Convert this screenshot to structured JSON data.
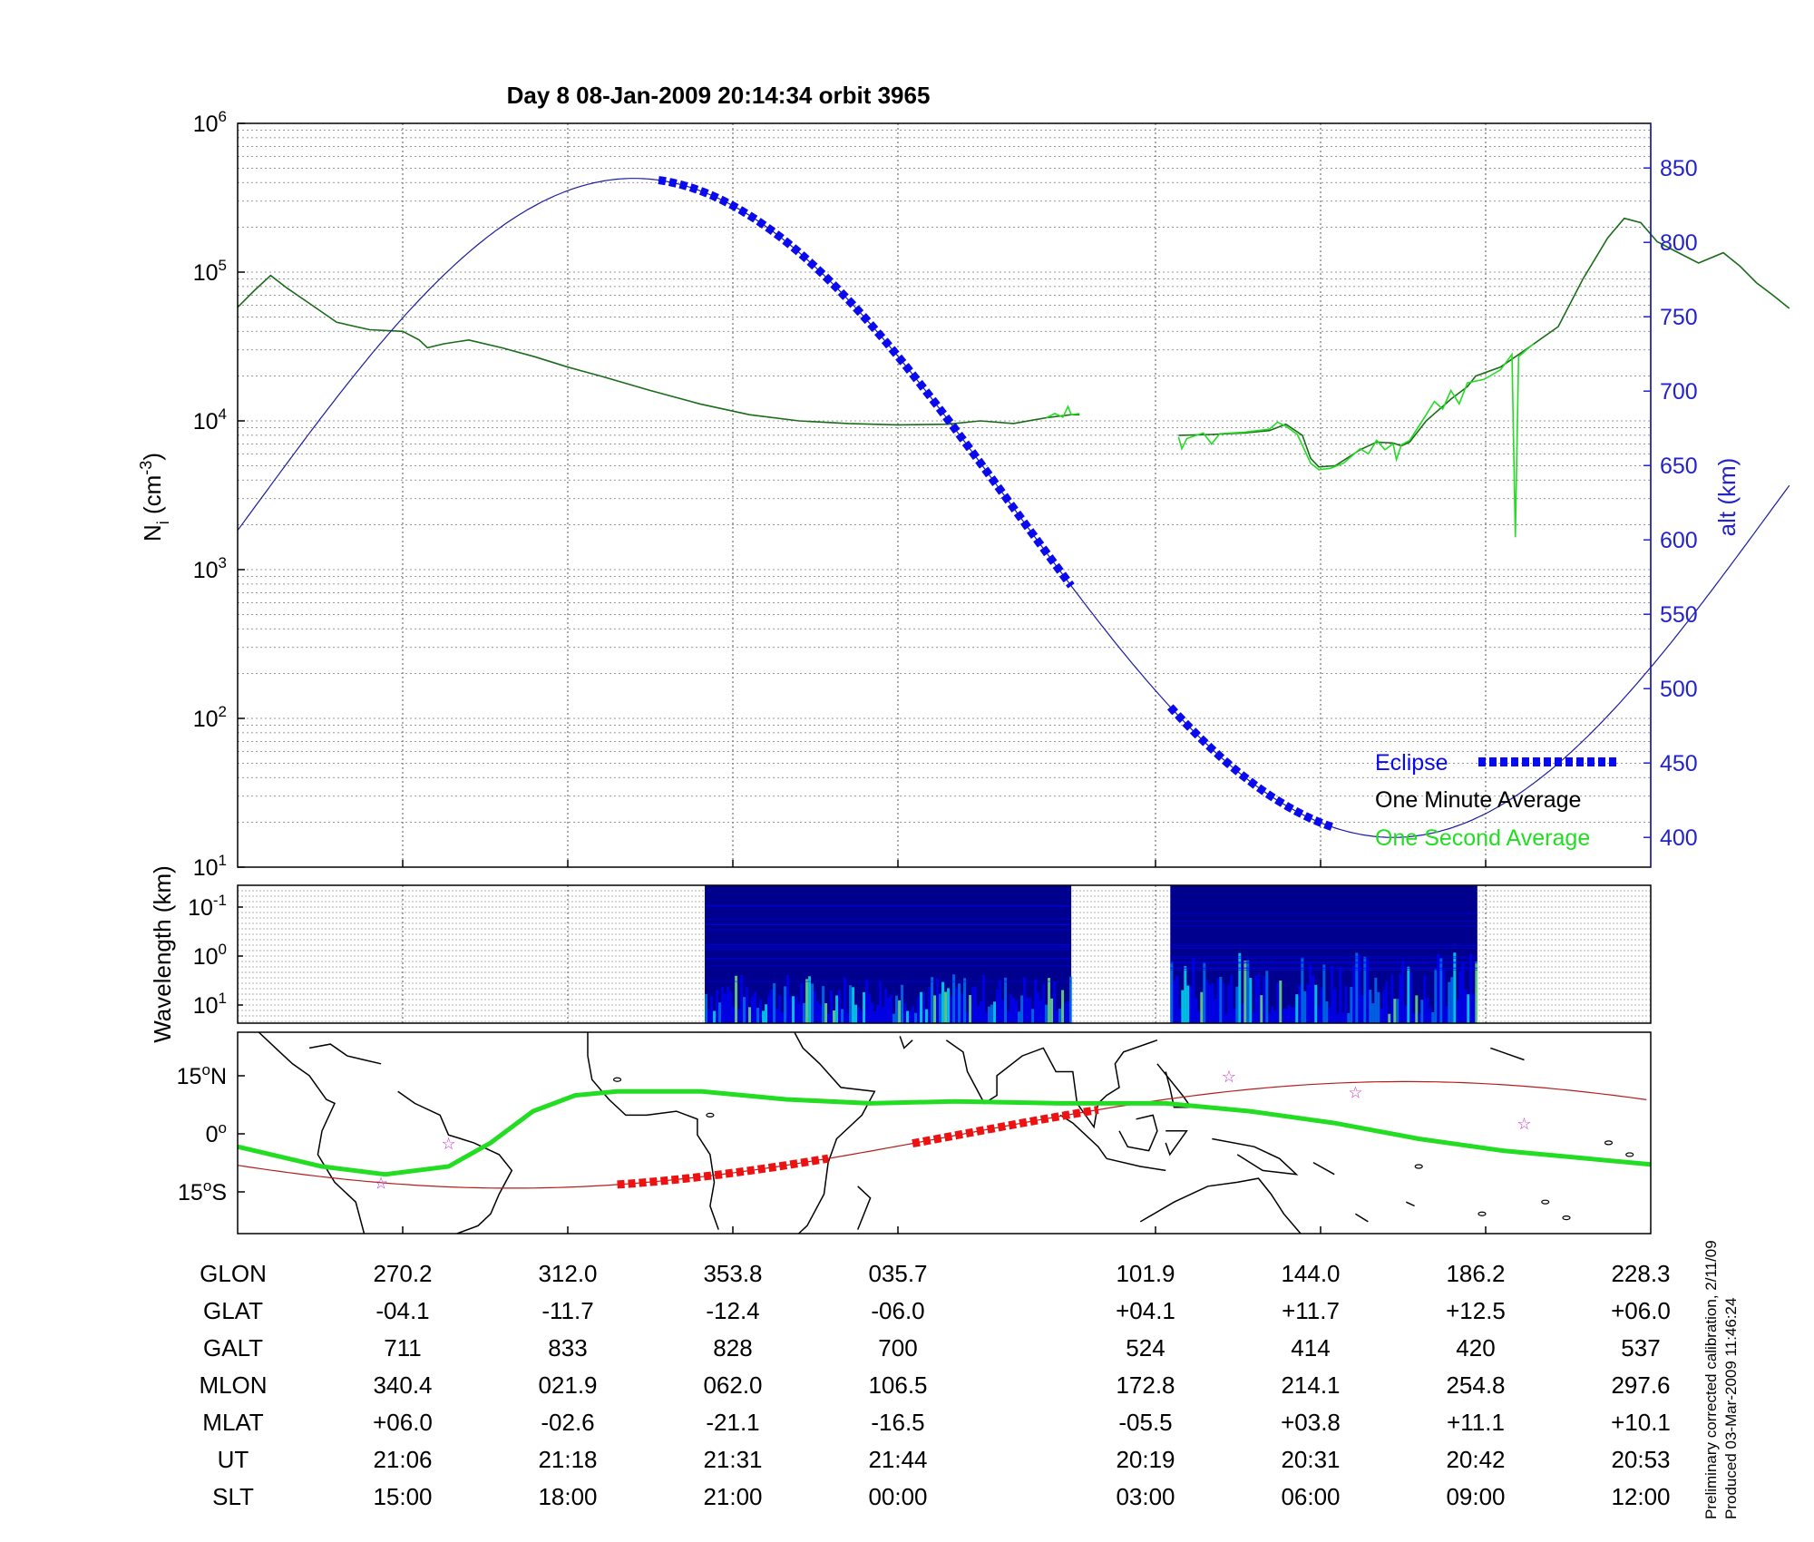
{
  "chart_data": [
    {
      "type": "line",
      "title": "Day 8  08-Jan-2009 20:14:34   orbit 3965",
      "ylabel_main": "N",
      "ylabel_sub": "i",
      "ylabel_unit_open": " (cm",
      "ylabel_unit_exp": "-3",
      "ylabel_unit_close": ")",
      "y_scale": "log",
      "ylim": [
        10,
        1000000
      ],
      "y_ticks": [
        {
          "base": "10",
          "exp": "1"
        },
        {
          "base": "10",
          "exp": "2"
        },
        {
          "base": "10",
          "exp": "3"
        },
        {
          "base": "10",
          "exp": "4"
        },
        {
          "base": "10",
          "exp": "5"
        },
        {
          "base": "10",
          "exp": "6"
        }
      ],
      "y2label": "alt (km)",
      "y2lim": [
        380,
        880
      ],
      "y2_ticks": [
        "400",
        "450",
        "500",
        "550",
        "600",
        "650",
        "700",
        "750",
        "800",
        "850"
      ],
      "x_index_range": [
        0,
        8.5
      ],
      "grid": true,
      "legend": {
        "placement": "bottom-right",
        "entries": [
          {
            "label": "Eclipse",
            "color": "#0a0aee"
          },
          {
            "label": "One Minute Average",
            "color": "#000000"
          },
          {
            "label": "One Second Average",
            "color": "#22dd22"
          }
        ]
      },
      "series": [
        {
          "name": "One Minute Average",
          "color": "#1a6b1a",
          "segments": [
            [
              [
                0,
                58000
              ],
              [
                0.1,
                75000
              ],
              [
                0.2,
                95000
              ],
              [
                0.3,
                78000
              ],
              [
                0.45,
                60000
              ],
              [
                0.6,
                46000
              ],
              [
                0.8,
                41000
              ],
              [
                1.0,
                40000
              ],
              [
                1.1,
                35000
              ],
              [
                1.15,
                31000
              ],
              [
                1.25,
                33000
              ],
              [
                1.4,
                35000
              ],
              [
                1.6,
                31000
              ],
              [
                1.8,
                27000
              ],
              [
                2.0,
                23000
              ],
              [
                2.2,
                20000
              ],
              [
                2.5,
                16000
              ],
              [
                2.8,
                13000
              ],
              [
                3.1,
                11000
              ],
              [
                3.4,
                10000
              ],
              [
                3.7,
                9600
              ],
              [
                4.0,
                9400
              ],
              [
                4.3,
                9500
              ],
              [
                4.5,
                10000
              ],
              [
                4.7,
                9600
              ],
              [
                4.9,
                10500
              ],
              [
                5.05,
                11000
              ],
              [
                5.1,
                11000
              ]
            ],
            [
              [
                5.1,
                11000
              ]
            ],
            [
              [
                5.7,
                8000
              ],
              [
                5.9,
                8100
              ],
              [
                6.1,
                8300
              ],
              [
                6.25,
                8600
              ],
              [
                6.35,
                9500
              ],
              [
                6.45,
                8000
              ],
              [
                6.5,
                5600
              ],
              [
                6.55,
                4900
              ],
              [
                6.65,
                5000
              ],
              [
                6.8,
                6400
              ],
              [
                6.9,
                7200
              ],
              [
                7.0,
                7100
              ],
              [
                7.05,
                6800
              ],
              [
                7.1,
                7200
              ],
              [
                7.2,
                10000
              ],
              [
                7.35,
                14000
              ],
              [
                7.45,
                17000
              ],
              [
                7.5,
                20000
              ],
              [
                7.65,
                23000
              ],
              [
                7.8,
                30000
              ],
              [
                8.0,
                43000
              ],
              [
                8.15,
                90000
              ],
              [
                8.3,
                170000
              ],
              [
                8.4,
                230000
              ],
              [
                8.5,
                215000
              ],
              [
                8.6,
                160000
              ],
              [
                8.7,
                140000
              ],
              [
                8.85,
                115000
              ],
              [
                9.0,
                135000
              ],
              [
                9.1,
                110000
              ],
              [
                9.2,
                85000
              ],
              [
                9.3,
                70000
              ],
              [
                9.4,
                57000
              ]
            ]
          ]
        },
        {
          "name": "One Second Average",
          "color": "#22dd22",
          "segments": [
            [
              [
                4.9,
                10500
              ],
              [
                4.95,
                11200
              ],
              [
                5.0,
                10600
              ],
              [
                5.03,
                12500
              ],
              [
                5.05,
                11000
              ],
              [
                5.1,
                11200
              ]
            ],
            [
              [
                5.7,
                7800
              ],
              [
                5.72,
                6500
              ],
              [
                5.75,
                7600
              ],
              [
                5.85,
                8300
              ],
              [
                5.9,
                7000
              ],
              [
                5.95,
                8200
              ],
              [
                6.1,
                8400
              ],
              [
                6.25,
                8800
              ],
              [
                6.3,
                9800
              ],
              [
                6.35,
                9200
              ],
              [
                6.42,
                8100
              ],
              [
                6.5,
                5200
              ],
              [
                6.55,
                4700
              ],
              [
                6.62,
                4800
              ],
              [
                6.7,
                5200
              ],
              [
                6.8,
                6500
              ],
              [
                6.85,
                6000
              ],
              [
                6.9,
                7400
              ],
              [
                6.95,
                6400
              ],
              [
                7.0,
                7000
              ],
              [
                7.02,
                5500
              ],
              [
                7.05,
                6900
              ],
              [
                7.1,
                7400
              ],
              [
                7.15,
                9000
              ],
              [
                7.2,
                11000
              ],
              [
                7.25,
                13500
              ],
              [
                7.3,
                12000
              ],
              [
                7.35,
                16000
              ],
              [
                7.4,
                13000
              ],
              [
                7.45,
                18000
              ],
              [
                7.55,
                19000
              ],
              [
                7.65,
                22000
              ],
              [
                7.72,
                28000
              ],
              [
                7.74,
                1650
              ],
              [
                7.76,
                27000
              ],
              [
                7.85,
                33000
              ]
            ]
          ]
        },
        {
          "name": "Altitude",
          "color": "#1a1aa0",
          "axis": "right",
          "curve": "orbit",
          "x_range": [
            0,
            9.4
          ],
          "x_max": 2.4,
          "alt_max": 843,
          "x_min": 7.0,
          "alt_min": 400
        },
        {
          "name": "Eclipse",
          "color": "#0a0aee",
          "axis": "right",
          "intervals": [
            [
              2.55,
              5.05
            ],
            [
              5.65,
              6.65
            ]
          ]
        }
      ]
    },
    {
      "type": "heatmap",
      "ylabel": "Wavelength (km)",
      "y_ticks": [
        {
          "base": "10",
          "exp": "-1"
        },
        {
          "base": "10",
          "exp": "0"
        },
        {
          "base": "10",
          "exp": "1"
        }
      ],
      "blocks_x": [
        [
          2.83,
          5.05
        ],
        [
          5.65,
          7.51
        ]
      ],
      "colormap": [
        "#00008f",
        "#0000ff",
        "#0080ff",
        "#00ffff",
        "#80ff80",
        "#ffff00"
      ]
    },
    {
      "type": "map",
      "y_ticks": [
        {
          "value": "15",
          "deg": "o",
          "hemi": "N"
        },
        {
          "value": "0",
          "deg": "o",
          "hemi": ""
        },
        {
          "value": "15",
          "deg": "o",
          "hemi": "S"
        }
      ],
      "lon_range": [
        -100,
        235
      ],
      "lat_range": [
        -25,
        26
      ],
      "ground_track_color": "#b41e1e",
      "magnetic_equator_color": "#22dd22",
      "eclipse_color": "#ee1111",
      "star_color": "#cc33cc"
    }
  ],
  "ephemeris": {
    "columns_x": [
      1,
      2,
      3,
      4,
      5.5,
      6.5,
      7.5,
      8.5
    ],
    "rows": [
      {
        "label": "GLON",
        "values": [
          "270.2",
          "312.0",
          "353.8",
          "035.7",
          "101.9",
          "144.0",
          "186.2",
          "228.3"
        ]
      },
      {
        "label": "GLAT",
        "values": [
          "-04.1",
          "-11.7",
          "-12.4",
          "-06.0",
          "+04.1",
          "+11.7",
          "+12.5",
          "+06.0"
        ]
      },
      {
        "label": "GALT",
        "values": [
          "711",
          "833",
          "828",
          "700",
          "524",
          "414",
          "420",
          "537"
        ]
      },
      {
        "label": "MLON",
        "values": [
          "340.4",
          "021.9",
          "062.0",
          "106.5",
          "172.8",
          "214.1",
          "254.8",
          "297.6"
        ]
      },
      {
        "label": "MLAT",
        "values": [
          "+06.0",
          "-02.6",
          "-21.1",
          "-16.5",
          "-05.5",
          "+03.8",
          "+11.1",
          "+10.1"
        ]
      },
      {
        "label": "UT",
        "values": [
          "21:06",
          "21:18",
          "21:31",
          "21:44",
          "20:19",
          "20:31",
          "20:42",
          "20:53"
        ]
      },
      {
        "label": "SLT",
        "values": [
          "15:00",
          "18:00",
          "21:00",
          "00:00",
          "03:00",
          "06:00",
          "09:00",
          "12:00"
        ]
      }
    ]
  },
  "notes": {
    "line1": "Preliminary corrected calibration, 2/11/09",
    "line2": "Produced 03-Mar-2009 11:46:24"
  }
}
